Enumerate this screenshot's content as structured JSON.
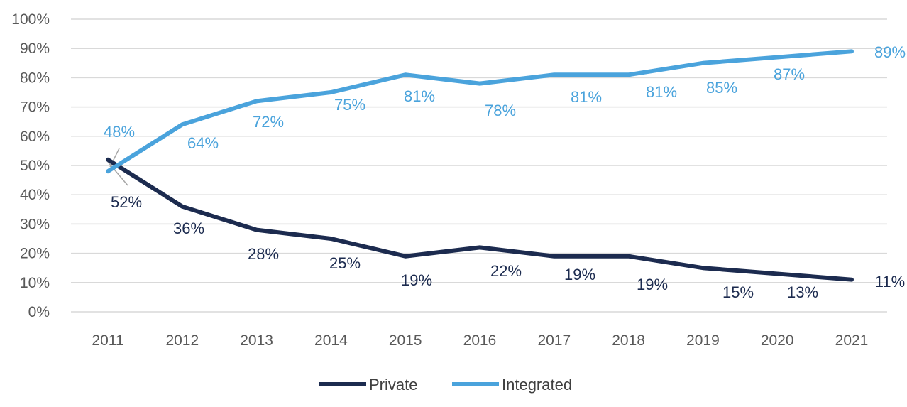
{
  "chart_data": {
    "type": "line",
    "title": "",
    "xlabel": "",
    "ylabel": "",
    "categories": [
      "2011",
      "2012",
      "2013",
      "2014",
      "2015",
      "2016",
      "2017",
      "2018",
      "2019",
      "2020",
      "2021"
    ],
    "y_ticks": [
      "0%",
      "10%",
      "20%",
      "30%",
      "40%",
      "50%",
      "60%",
      "70%",
      "80%",
      "90%",
      "100%"
    ],
    "ylim": [
      0,
      100
    ],
    "grid": true,
    "legend_position": "bottom",
    "series": [
      {
        "name": "Private",
        "color": "#1c2b4f",
        "values": [
          52,
          36,
          28,
          25,
          19,
          22,
          19,
          19,
          15,
          13,
          11
        ],
        "labels": [
          "52%",
          "36%",
          "28%",
          "25%",
          "19%",
          "22%",
          "19%",
          "19%",
          "15%",
          "13%",
          "11%"
        ]
      },
      {
        "name": "Integrated",
        "color": "#4aa3dc",
        "values": [
          48,
          64,
          72,
          75,
          81,
          78,
          81,
          81,
          85,
          87,
          89
        ],
        "labels": [
          "48%",
          "64%",
          "72%",
          "75%",
          "81%",
          "78%",
          "81%",
          "81%",
          "85%",
          "87%",
          "89%"
        ]
      }
    ]
  }
}
